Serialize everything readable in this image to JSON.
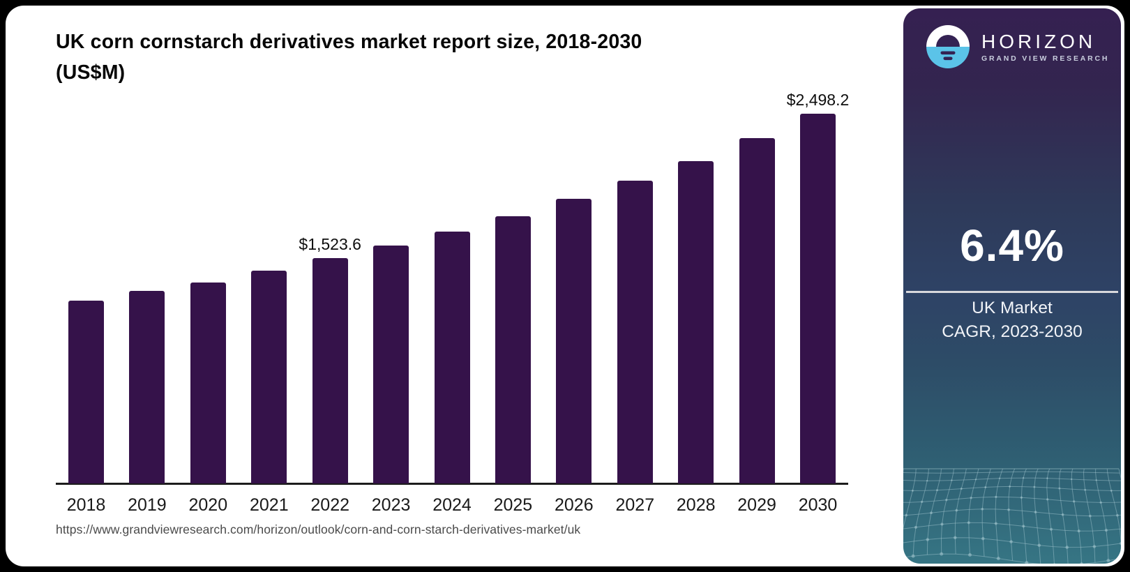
{
  "title": {
    "line1": "UK corn cornstarch derivatives market report size, 2018-2030",
    "line2": "(US$M)"
  },
  "source_url": "https://www.grandviewresearch.com/horizon/outlook/corn-and-corn-starch-derivatives-market/uk",
  "chart_data": {
    "type": "bar",
    "title": "UK corn cornstarch derivatives market report size, 2018-2030 (US$M)",
    "xlabel": "",
    "ylabel": "US$M",
    "ylim": [
      0,
      2600
    ],
    "grid": false,
    "legend": "none",
    "bar_color": "#35124a",
    "categories": [
      "2018",
      "2019",
      "2020",
      "2021",
      "2022",
      "2023",
      "2024",
      "2025",
      "2026",
      "2027",
      "2028",
      "2029",
      "2030"
    ],
    "values": [
      1235.0,
      1300.2,
      1355.4,
      1437.1,
      1523.6,
      1609.6,
      1702.4,
      1804.3,
      1921.9,
      2047.7,
      2180.1,
      2334.9,
      2498.2
    ],
    "labeled_points": [
      {
        "category": "2022",
        "label": "$1,523.6"
      },
      {
        "category": "2030",
        "label": "$2,498.2"
      }
    ]
  },
  "sidebar": {
    "logo": {
      "brand": "HORIZON",
      "sub_brand": "GRAND VIEW RESEARCH",
      "icon": "horizon-sunset-icon"
    },
    "stat": {
      "value": "6.4%",
      "label_line1": "UK Market",
      "label_line2": "CAGR, 2023-2030"
    },
    "colors": {
      "gradient_top": "#352051",
      "gradient_bottom": "#367584",
      "logo_blue": "#5bc3e8",
      "mesh_line": "#aaccd4"
    }
  }
}
